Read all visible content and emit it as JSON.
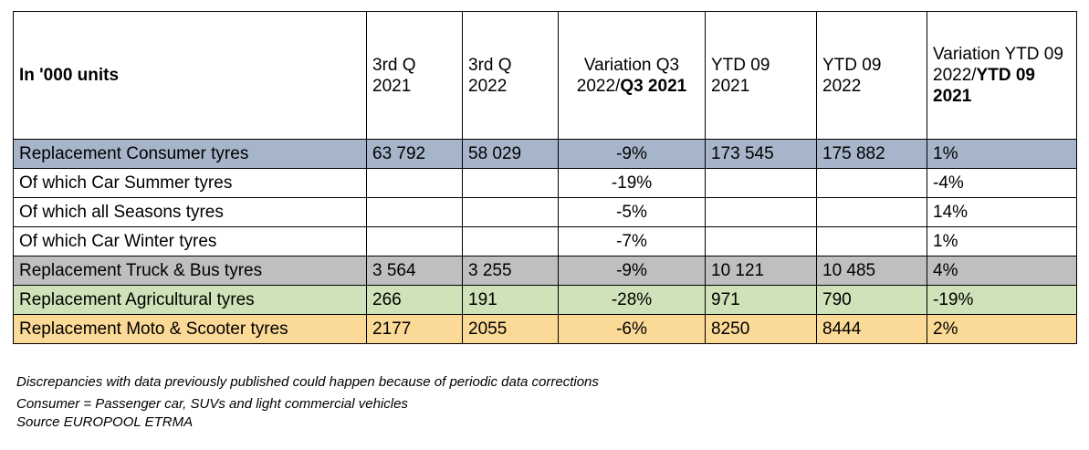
{
  "header": {
    "label": "In '000 units",
    "q3_2021": "3rd Q 2021",
    "q3_2022": "3rd Q 2022",
    "variation_q3_prefix": "Variation Q3 2022/",
    "variation_q3_bold": "Q3 2021",
    "ytd_2021": "YTD 09 2021",
    "ytd_2022": "YTD 09 2022",
    "variation_ytd_prefix": "Variation YTD 09 2022/",
    "variation_ytd_bold": "YTD 09 2021"
  },
  "rows": [
    {
      "label": "Replacement Consumer tyres",
      "q3_2021": "63 792",
      "q3_2022": "58 029",
      "var_q3": "-9%",
      "ytd_2021": "173 545",
      "ytd_2022": "175 882",
      "var_ytd": "1%",
      "color": "#a6b5c9"
    },
    {
      "label": "Of which Car Summer tyres",
      "q3_2021": "",
      "q3_2022": "",
      "var_q3": "-19%",
      "ytd_2021": "",
      "ytd_2022": "",
      "var_ytd": "-4%",
      "color": "#ffffff"
    },
    {
      "label": "Of which all Seasons tyres",
      "q3_2021": "",
      "q3_2022": "",
      "var_q3": "-5%",
      "ytd_2021": "",
      "ytd_2022": "",
      "var_ytd": "14%",
      "color": "#ffffff"
    },
    {
      "label": "Of which Car Winter tyres",
      "q3_2021": "",
      "q3_2022": "",
      "var_q3": "-7%",
      "ytd_2021": "",
      "ytd_2022": "",
      "var_ytd": "1%",
      "color": "#ffffff"
    },
    {
      "label": "Replacement Truck & Bus tyres",
      "q3_2021": "3 564",
      "q3_2022": "3 255",
      "var_q3": "-9%",
      "ytd_2021": "10 121",
      "ytd_2022": "10 485",
      "var_ytd": "4%",
      "color": "#bfbfbf"
    },
    {
      "label": "Replacement Agricultural tyres",
      "q3_2021": "266",
      "q3_2022": "191",
      "var_q3": "-28%",
      "ytd_2021": "971",
      "ytd_2022": "790",
      "var_ytd": "-19%",
      "color": "#cfe2b9"
    },
    {
      "label": "Replacement Moto & Scooter tyres",
      "q3_2021": "2177",
      "q3_2022": "2055",
      "var_q3": "-6%",
      "ytd_2021": "8250",
      "ytd_2022": "8444",
      "var_ytd": "2%",
      "color": "#fbd996"
    }
  ],
  "notes": {
    "discrepancies": "Discrepancies with data previously published could happen because of periodic data corrections",
    "consumer": "Consumer = Passenger car, SUVs and light commercial vehicles",
    "source": "Source EUROPOOL ETRMA"
  }
}
